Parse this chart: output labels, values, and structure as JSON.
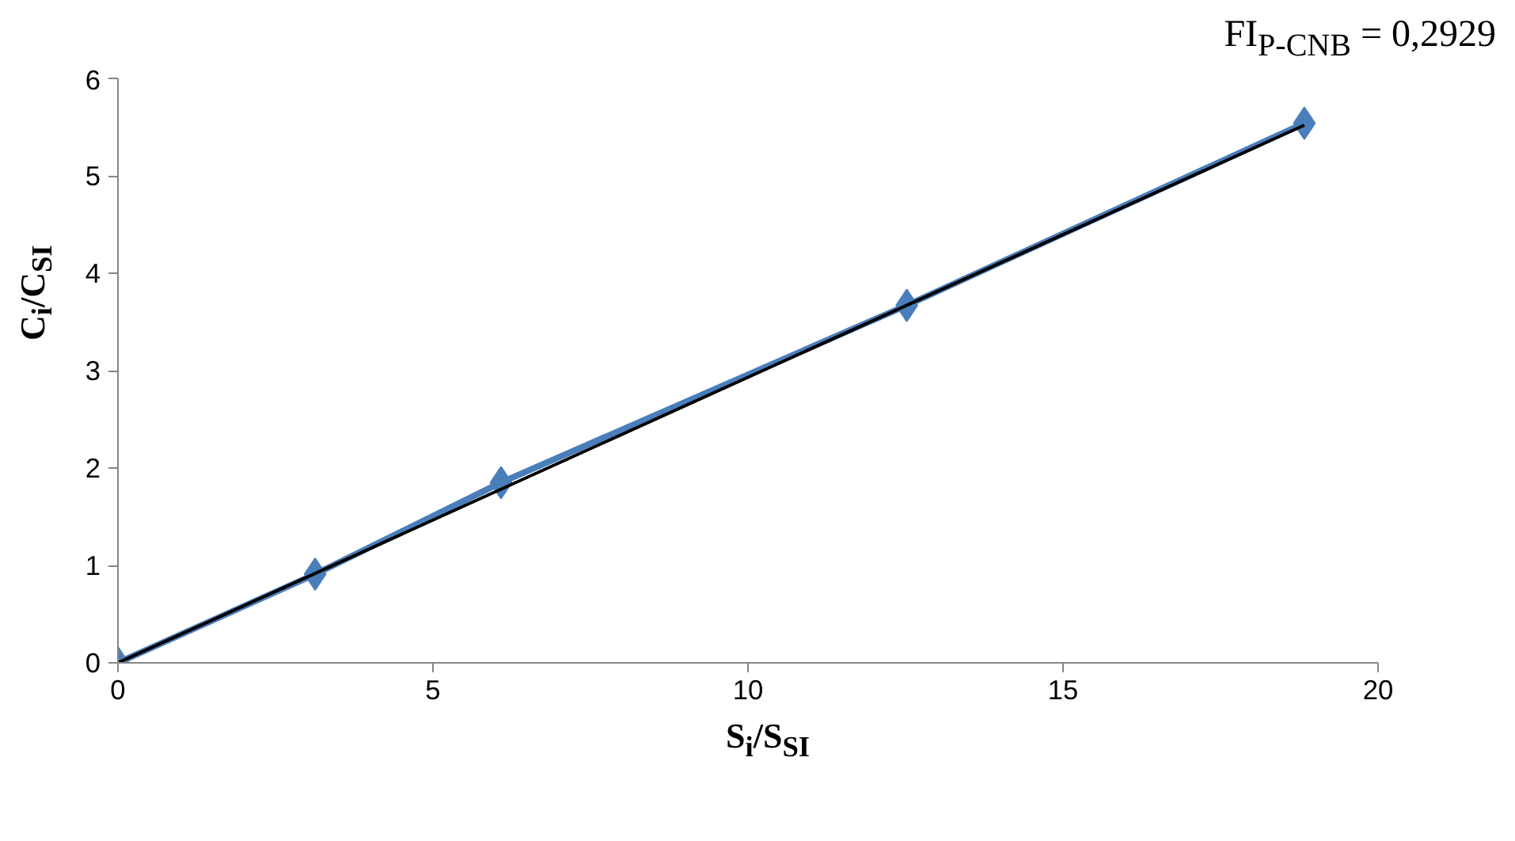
{
  "chart_data": {
    "type": "line",
    "xlabel": "S$_{i}$/S$_{SI}$",
    "ylabel": "C$_{i}$/C$_{SI}$",
    "annotations": [
      "FI$_{P-CNB}$ = 0,2929"
    ],
    "series": [
      {
        "color": "#4a7ebb",
        "x": [
          0,
          3.13,
          6.08,
          12.52,
          18.83
        ],
        "values": [
          0,
          0.91,
          1.85,
          3.67,
          5.54
        ]
      },
      {
        "color": "#000000",
        "x": [
          0,
          18.83
        ],
        "values": [
          0,
          5.52
        ],
        "marker": "none"
      }
    ],
    "marker": "diamond",
    "xlim": [
      0,
      20
    ],
    "ylim": [
      0,
      6
    ],
    "xticks": [
      0,
      5,
      10,
      15,
      20
    ],
    "yticks": [
      0,
      1,
      2,
      3,
      4,
      5,
      6
    ],
    "grid": false
  }
}
